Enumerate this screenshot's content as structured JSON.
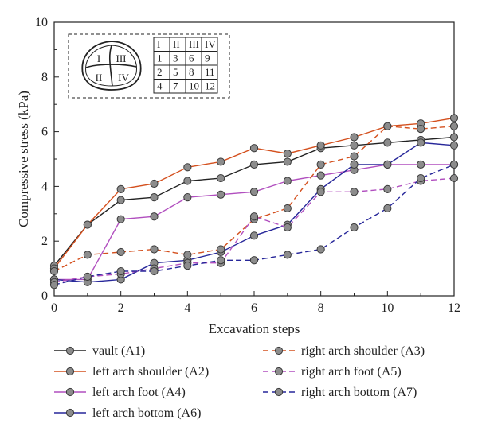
{
  "chart_data": {
    "type": "line",
    "title": "",
    "xlabel": "Excavation steps",
    "ylabel": "Compressive stress (kPa)",
    "xlim": [
      0,
      12
    ],
    "ylim": [
      0,
      10
    ],
    "x_ticks": [
      "0",
      "2",
      "4",
      "6",
      "8",
      "10",
      "12"
    ],
    "y_ticks": [
      "0",
      "2",
      "4",
      "6",
      "8",
      "10"
    ],
    "grid": false,
    "legend_position": "bottom",
    "x": [
      0,
      1,
      2,
      3,
      4,
      5,
      6,
      7,
      8,
      9,
      10,
      11,
      12
    ],
    "series": [
      {
        "name": "vault (A1)",
        "color": "#222222",
        "dash": "solid",
        "values": [
          1.1,
          2.6,
          3.5,
          3.6,
          4.2,
          4.3,
          4.8,
          4.9,
          5.4,
          5.5,
          5.6,
          5.7,
          5.8
        ]
      },
      {
        "name": "left arch shoulder (A2)",
        "color": "#d4501e",
        "dash": "solid",
        "values": [
          1.0,
          2.6,
          3.9,
          4.1,
          4.7,
          4.9,
          5.4,
          5.2,
          5.5,
          5.8,
          6.2,
          6.3,
          6.5
        ]
      },
      {
        "name": "left arch foot (A4)",
        "color": "#b14fbf",
        "dash": "solid",
        "values": [
          0.6,
          0.6,
          2.8,
          2.9,
          3.6,
          3.7,
          3.8,
          4.2,
          4.4,
          4.6,
          4.8,
          4.8,
          4.8
        ]
      },
      {
        "name": "left arch bottom (A6)",
        "color": "#27279a",
        "dash": "solid",
        "values": [
          0.6,
          0.5,
          0.6,
          1.2,
          1.3,
          1.6,
          2.2,
          2.6,
          3.9,
          4.8,
          4.8,
          5.6,
          5.5
        ]
      },
      {
        "name": "right arch shoulder (A3)",
        "color": "#d4501e",
        "dash": "dashed",
        "values": [
          0.9,
          1.5,
          1.6,
          1.7,
          1.5,
          1.7,
          2.8,
          3.2,
          4.8,
          5.1,
          6.2,
          6.1,
          6.2
        ]
      },
      {
        "name": "right arch foot (A5)",
        "color": "#b14fbf",
        "dash": "dashed",
        "values": [
          0.5,
          0.7,
          0.8,
          1.0,
          1.2,
          1.2,
          2.9,
          2.5,
          3.8,
          3.8,
          3.9,
          4.2,
          4.3
        ]
      },
      {
        "name": "right arch bottom (A7)",
        "color": "#27279a",
        "dash": "dashed",
        "values": [
          0.4,
          0.7,
          0.9,
          0.9,
          1.1,
          1.3,
          1.3,
          1.5,
          1.7,
          2.5,
          3.2,
          4.3,
          4.8
        ]
      }
    ],
    "inset": {
      "section_labels": [
        "I",
        "III",
        "II",
        "IV"
      ],
      "table": [
        [
          "I",
          "II",
          "III",
          "IV"
        ],
        [
          "1",
          "3",
          "6",
          "9"
        ],
        [
          "2",
          "5",
          "8",
          "11"
        ],
        [
          "4",
          "7",
          "10",
          "12"
        ]
      ]
    }
  }
}
